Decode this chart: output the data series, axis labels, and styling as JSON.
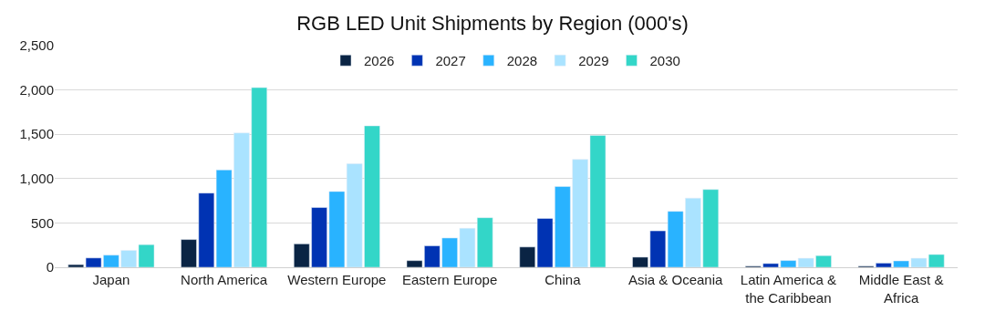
{
  "chart_data": {
    "type": "bar",
    "title": "RGB LED Unit Shipments by Region (000's)",
    "categories": [
      "Japan",
      "North America",
      "Western Europe",
      "Eastern Europe",
      "China",
      "Asia & Oceania",
      "Latin America &\nthe Caribbean",
      "Middle East &\nAfrica"
    ],
    "series": [
      {
        "name": "2026",
        "color": "#0a2444",
        "values": [
          30,
          313,
          264,
          75,
          229,
          114,
          13,
          13
        ]
      },
      {
        "name": "2027",
        "color": "#0033b3",
        "values": [
          105,
          837,
          674,
          242,
          551,
          411,
          42,
          47
        ]
      },
      {
        "name": "2028",
        "color": "#29b3ff",
        "values": [
          137,
          1097,
          855,
          330,
          911,
          631,
          76,
          72
        ]
      },
      {
        "name": "2029",
        "color": "#aae3ff",
        "values": [
          190,
          1515,
          1167,
          440,
          1216,
          780,
          102,
          102
        ]
      },
      {
        "name": "2030",
        "color": "#33d6c8",
        "values": [
          255,
          2026,
          1595,
          559,
          1487,
          877,
          131,
          144
        ]
      }
    ],
    "ylim": [
      0,
      2500
    ],
    "yticks": [
      0,
      500,
      {
        "value": 1000,
        "label": "1,000"
      },
      {
        "value": 1500,
        "label": "1,500"
      },
      {
        "value": 2000,
        "label": "2,000"
      },
      {
        "value": 2500,
        "label": "2,500"
      }
    ],
    "grid": "y",
    "legend": "top"
  }
}
